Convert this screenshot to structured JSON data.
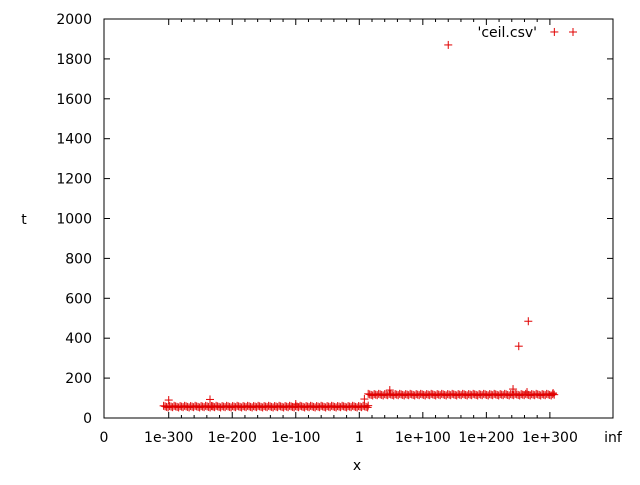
{
  "chart_data": {
    "type": "scatter",
    "xlabel": "x",
    "ylabel": "t",
    "legend": "'ceil.csv'",
    "legend_position": "top-right",
    "grid": false,
    "ylim": [
      0,
      2000
    ],
    "x_ticks": [
      "0",
      "1e-300",
      "1e-200",
      "1e-100",
      "1",
      "1e+100",
      "1e+200",
      "1e+300",
      "inf"
    ],
    "y_ticks": [
      "0",
      "200",
      "400",
      "600",
      "800",
      "1000",
      "1200",
      "1400",
      "1600",
      "1800",
      "2000"
    ],
    "marker": "+",
    "series": [
      {
        "color": "#e00000",
        "bands": [
          {
            "x_from": "1e-308",
            "x_to": "1e+14",
            "y": 57,
            "jitter": 4
          },
          {
            "x_from": "1e+14",
            "x_to": "1e+308",
            "y": 117,
            "jitter": 4
          }
        ],
        "points": [
          {
            "x": "1e-300",
            "y": 90
          },
          {
            "x": "1e-235",
            "y": 93
          },
          {
            "x": "1e-232",
            "y": 60
          },
          {
            "x": "1e-100",
            "y": 70
          },
          {
            "x": "1e+8",
            "y": 95
          },
          {
            "x": "1e+14",
            "y": 62
          },
          {
            "x": "1e+48",
            "y": 140
          },
          {
            "x": "1e+140",
            "y": 1870
          },
          {
            "x": "1e+242",
            "y": 145
          },
          {
            "x": "1e+251",
            "y": 360
          },
          {
            "x": "1e+266",
            "y": 485
          },
          {
            "x": "1e+264",
            "y": 130
          },
          {
            "x": "1e+305",
            "y": 125
          },
          {
            "x": "1e+307",
            "y": 1935
          }
        ]
      }
    ]
  }
}
